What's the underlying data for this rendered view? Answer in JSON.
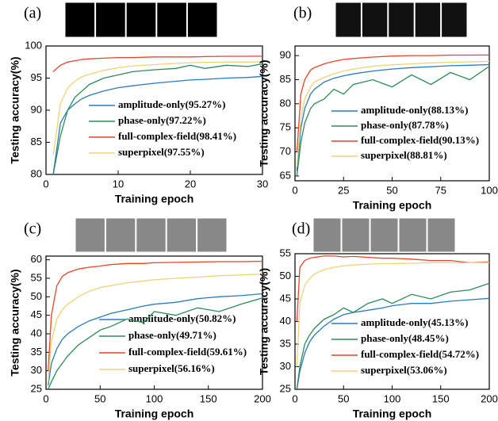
{
  "chart_data": [
    {
      "type": "line",
      "label": "(a)",
      "xlabel": "Training epoch",
      "ylabel": "Testing accuracy(%)",
      "x": [
        1,
        2,
        3,
        4,
        5,
        6,
        8,
        10,
        12,
        15,
        18,
        20,
        22,
        25,
        28,
        30
      ],
      "xlim": [
        0,
        30
      ],
      "xticks": [
        0,
        10,
        20,
        30
      ],
      "ylim": [
        80,
        100
      ],
      "yticks": [
        80,
        85,
        90,
        95,
        100
      ],
      "series": [
        {
          "name": "amplitude-only(95.27%)",
          "color": "#2a7ac0",
          "values": [
            80,
            88,
            90,
            91,
            91.8,
            92.3,
            93,
            93.5,
            93.8,
            94.2,
            94.5,
            94.7,
            94.8,
            95,
            95.1,
            95.27
          ]
        },
        {
          "name": "phase-only(97.22%)",
          "color": "#2e8b57",
          "values": [
            80,
            86,
            90,
            92,
            93,
            94,
            95,
            95.5,
            96,
            96.3,
            96.5,
            97,
            96.5,
            97,
            96.8,
            97.22
          ]
        },
        {
          "name": "full-complex-field(98.41%)",
          "color": "#e8452a",
          "values": [
            96,
            97,
            97.5,
            97.7,
            97.9,
            98,
            98.1,
            98.2,
            98.2,
            98.3,
            98.3,
            98.3,
            98.35,
            98.4,
            98.4,
            98.41
          ]
        },
        {
          "name": "superpixel(97.55%)",
          "color": "#f0d27a",
          "values": [
            83,
            91,
            93.5,
            94.5,
            95.2,
            95.6,
            96.2,
            96.6,
            96.9,
            97.1,
            97.3,
            97.4,
            97.45,
            97.5,
            97.5,
            97.55
          ]
        }
      ]
    },
    {
      "type": "line",
      "label": "(b)",
      "xlabel": "Training epoch",
      "ylabel": "Testing accuracy(%)",
      "x": [
        1,
        3,
        5,
        8,
        10,
        15,
        20,
        25,
        30,
        40,
        50,
        60,
        70,
        80,
        90,
        100
      ],
      "xlim": [
        0,
        100
      ],
      "xticks": [
        0,
        25,
        50,
        75,
        100
      ],
      "ylim": [
        64,
        92
      ],
      "yticks": [
        65,
        70,
        75,
        80,
        85,
        90
      ],
      "series": [
        {
          "name": "amplitude-only(88.13%)",
          "color": "#2a7ac0",
          "values": [
            66,
            75,
            79,
            82,
            83,
            84.5,
            85.3,
            85.8,
            86.2,
            86.8,
            87.2,
            87.5,
            87.7,
            87.9,
            88,
            88.13
          ]
        },
        {
          "name": "phase-only(87.78%)",
          "color": "#2e8b57",
          "values": [
            65,
            72,
            76,
            79,
            80,
            81,
            83,
            82,
            84,
            85,
            83.5,
            86,
            84,
            86.5,
            85,
            87.78
          ]
        },
        {
          "name": "full-complex-field(90.13%)",
          "color": "#e8452a",
          "values": [
            70,
            82,
            85,
            87,
            87.5,
            88.3,
            88.8,
            89.2,
            89.4,
            89.7,
            89.9,
            90,
            90,
            90.1,
            90.1,
            90.13
          ]
        },
        {
          "name": "superpixel(88.81%)",
          "color": "#f0d27a",
          "values": [
            67,
            77,
            81,
            83.5,
            84.5,
            85.5,
            86.2,
            86.8,
            87.2,
            87.8,
            88.1,
            88.3,
            88.5,
            88.6,
            88.7,
            88.81
          ]
        }
      ]
    },
    {
      "type": "line",
      "label": "(c)",
      "xlabel": "Training epoch",
      "ylabel": "Testing accuracy(%)",
      "x": [
        2,
        5,
        10,
        15,
        20,
        30,
        40,
        50,
        60,
        75,
        90,
        100,
        120,
        140,
        160,
        180,
        200
      ],
      "xlim": [
        0,
        200
      ],
      "xticks": [
        0,
        50,
        100,
        150,
        200
      ],
      "ylim": [
        25,
        61
      ],
      "yticks": [
        25,
        30,
        35,
        40,
        45,
        50,
        55,
        60
      ],
      "series": [
        {
          "name": "amplitude-only(50.82%)",
          "color": "#2a7ac0",
          "values": [
            26,
            32,
            36,
            38.5,
            40,
            42,
            43.5,
            44.5,
            45.5,
            46.5,
            47.5,
            48,
            48.5,
            49.5,
            50,
            50.3,
            50.82
          ]
        },
        {
          "name": "phase-only(49.71%)",
          "color": "#2e8b57",
          "values": [
            25,
            27,
            30,
            32,
            34,
            37,
            39,
            41,
            42,
            44,
            43,
            46,
            45,
            47,
            46,
            48,
            49.71
          ]
        },
        {
          "name": "full-complex-field(59.61%)",
          "color": "#e8452a",
          "values": [
            30,
            45,
            53,
            55.5,
            56.5,
            57.5,
            58,
            58.3,
            58.7,
            59,
            59,
            59.2,
            59.3,
            59.4,
            59.5,
            59.5,
            59.61
          ]
        },
        {
          "name": "superpixel(56.16%)",
          "color": "#f0d27a",
          "values": [
            27,
            38,
            44,
            46.5,
            48,
            50,
            51.5,
            52.5,
            53,
            53.8,
            54.3,
            54.6,
            55,
            55.3,
            55.7,
            55.9,
            56.16
          ]
        }
      ]
    },
    {
      "type": "line",
      "label": "(d)",
      "xlabel": "Training epoch",
      "ylabel": "Testing accuracy(%)",
      "x": [
        2,
        5,
        10,
        15,
        20,
        30,
        40,
        50,
        60,
        75,
        90,
        100,
        120,
        140,
        160,
        180,
        200
      ],
      "xlim": [
        0,
        200
      ],
      "xticks": [
        0,
        50,
        100,
        150,
        200
      ],
      "ylim": [
        25,
        55
      ],
      "yticks": [
        25,
        30,
        35,
        40,
        45,
        50,
        55
      ],
      "series": [
        {
          "name": "amplitude-only(45.13%)",
          "color": "#2a7ac0",
          "values": [
            25,
            29,
            33,
            35.5,
            37,
            39,
            40.5,
            41.5,
            42,
            42.5,
            43,
            43.5,
            44,
            44,
            44.5,
            44.8,
            45.13
          ]
        },
        {
          "name": "phase-only(48.45%)",
          "color": "#2e8b57",
          "values": [
            25,
            30,
            35,
            37,
            38.5,
            40.5,
            41.5,
            43,
            42,
            44,
            45,
            44,
            46,
            45,
            46.5,
            47,
            48.45
          ]
        },
        {
          "name": "full-complex-field(54.72%)",
          "color": "#e8452a",
          "values": [
            40,
            52,
            53.5,
            54,
            54.2,
            54.5,
            54.5,
            54.3,
            54.4,
            54.2,
            54,
            54,
            53.8,
            53.5,
            53.5,
            53,
            53.2
          ]
        },
        {
          "name": "superpixel(53.06%)",
          "color": "#f0d27a",
          "values": [
            30,
            44,
            48,
            49.5,
            50.5,
            51.5,
            52,
            52.3,
            52.5,
            52.7,
            52.8,
            52.8,
            52.9,
            53,
            53,
            53,
            53.06
          ]
        }
      ]
    }
  ]
}
